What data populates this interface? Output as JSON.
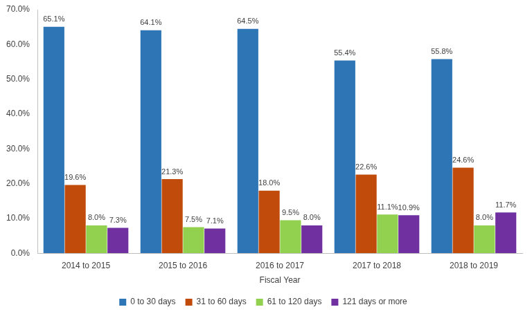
{
  "chart_data": {
    "type": "bar",
    "x_label": "Fiscal Year",
    "categories": [
      "2014 to 2015",
      "2015 to 2016",
      "2016 to 2017",
      "2017 to 2018",
      "2018 to 2019"
    ],
    "series": [
      {
        "name": "0 to 30 days",
        "color": "#2e75b6",
        "values": [
          65.1,
          64.1,
          64.5,
          55.4,
          55.8
        ],
        "value_labels": [
          "65.1%",
          "64.1%",
          "64.5%",
          "55.4%",
          "55.8%"
        ]
      },
      {
        "name": "31 to 60 days",
        "color": "#c04b0b",
        "values": [
          19.6,
          21.3,
          18.0,
          22.6,
          24.6
        ],
        "value_labels": [
          "19.6%",
          "21.3%",
          "18.0%",
          "22.6%",
          "24.6%"
        ]
      },
      {
        "name": "61 to 120 days",
        "color": "#92d050",
        "values": [
          8.0,
          7.5,
          9.5,
          11.1,
          8.0
        ],
        "value_labels": [
          "8.0%",
          "7.5%",
          "9.5%",
          "11.1%",
          "8.0%"
        ]
      },
      {
        "name": "121 days or more",
        "color": "#7030a0",
        "values": [
          7.3,
          7.1,
          8.0,
          10.9,
          11.7
        ],
        "value_labels": [
          "7.3%",
          "7.1%",
          "8.0%",
          "10.9%",
          "11.7%"
        ]
      }
    ],
    "ylim": [
      0,
      70
    ],
    "yticks": [
      {
        "value": 0,
        "label": "0.0%"
      },
      {
        "value": 10,
        "label": "10.0%"
      },
      {
        "value": 20,
        "label": "20.0%"
      },
      {
        "value": 30,
        "label": "30.0%"
      },
      {
        "value": 40,
        "label": "40.0%"
      },
      {
        "value": 50,
        "label": "50.0%"
      },
      {
        "value": 60,
        "label": "60.0%"
      },
      {
        "value": 70,
        "label": "70.0%"
      }
    ],
    "grid": false,
    "legend": "bottom",
    "data_labels": true
  }
}
